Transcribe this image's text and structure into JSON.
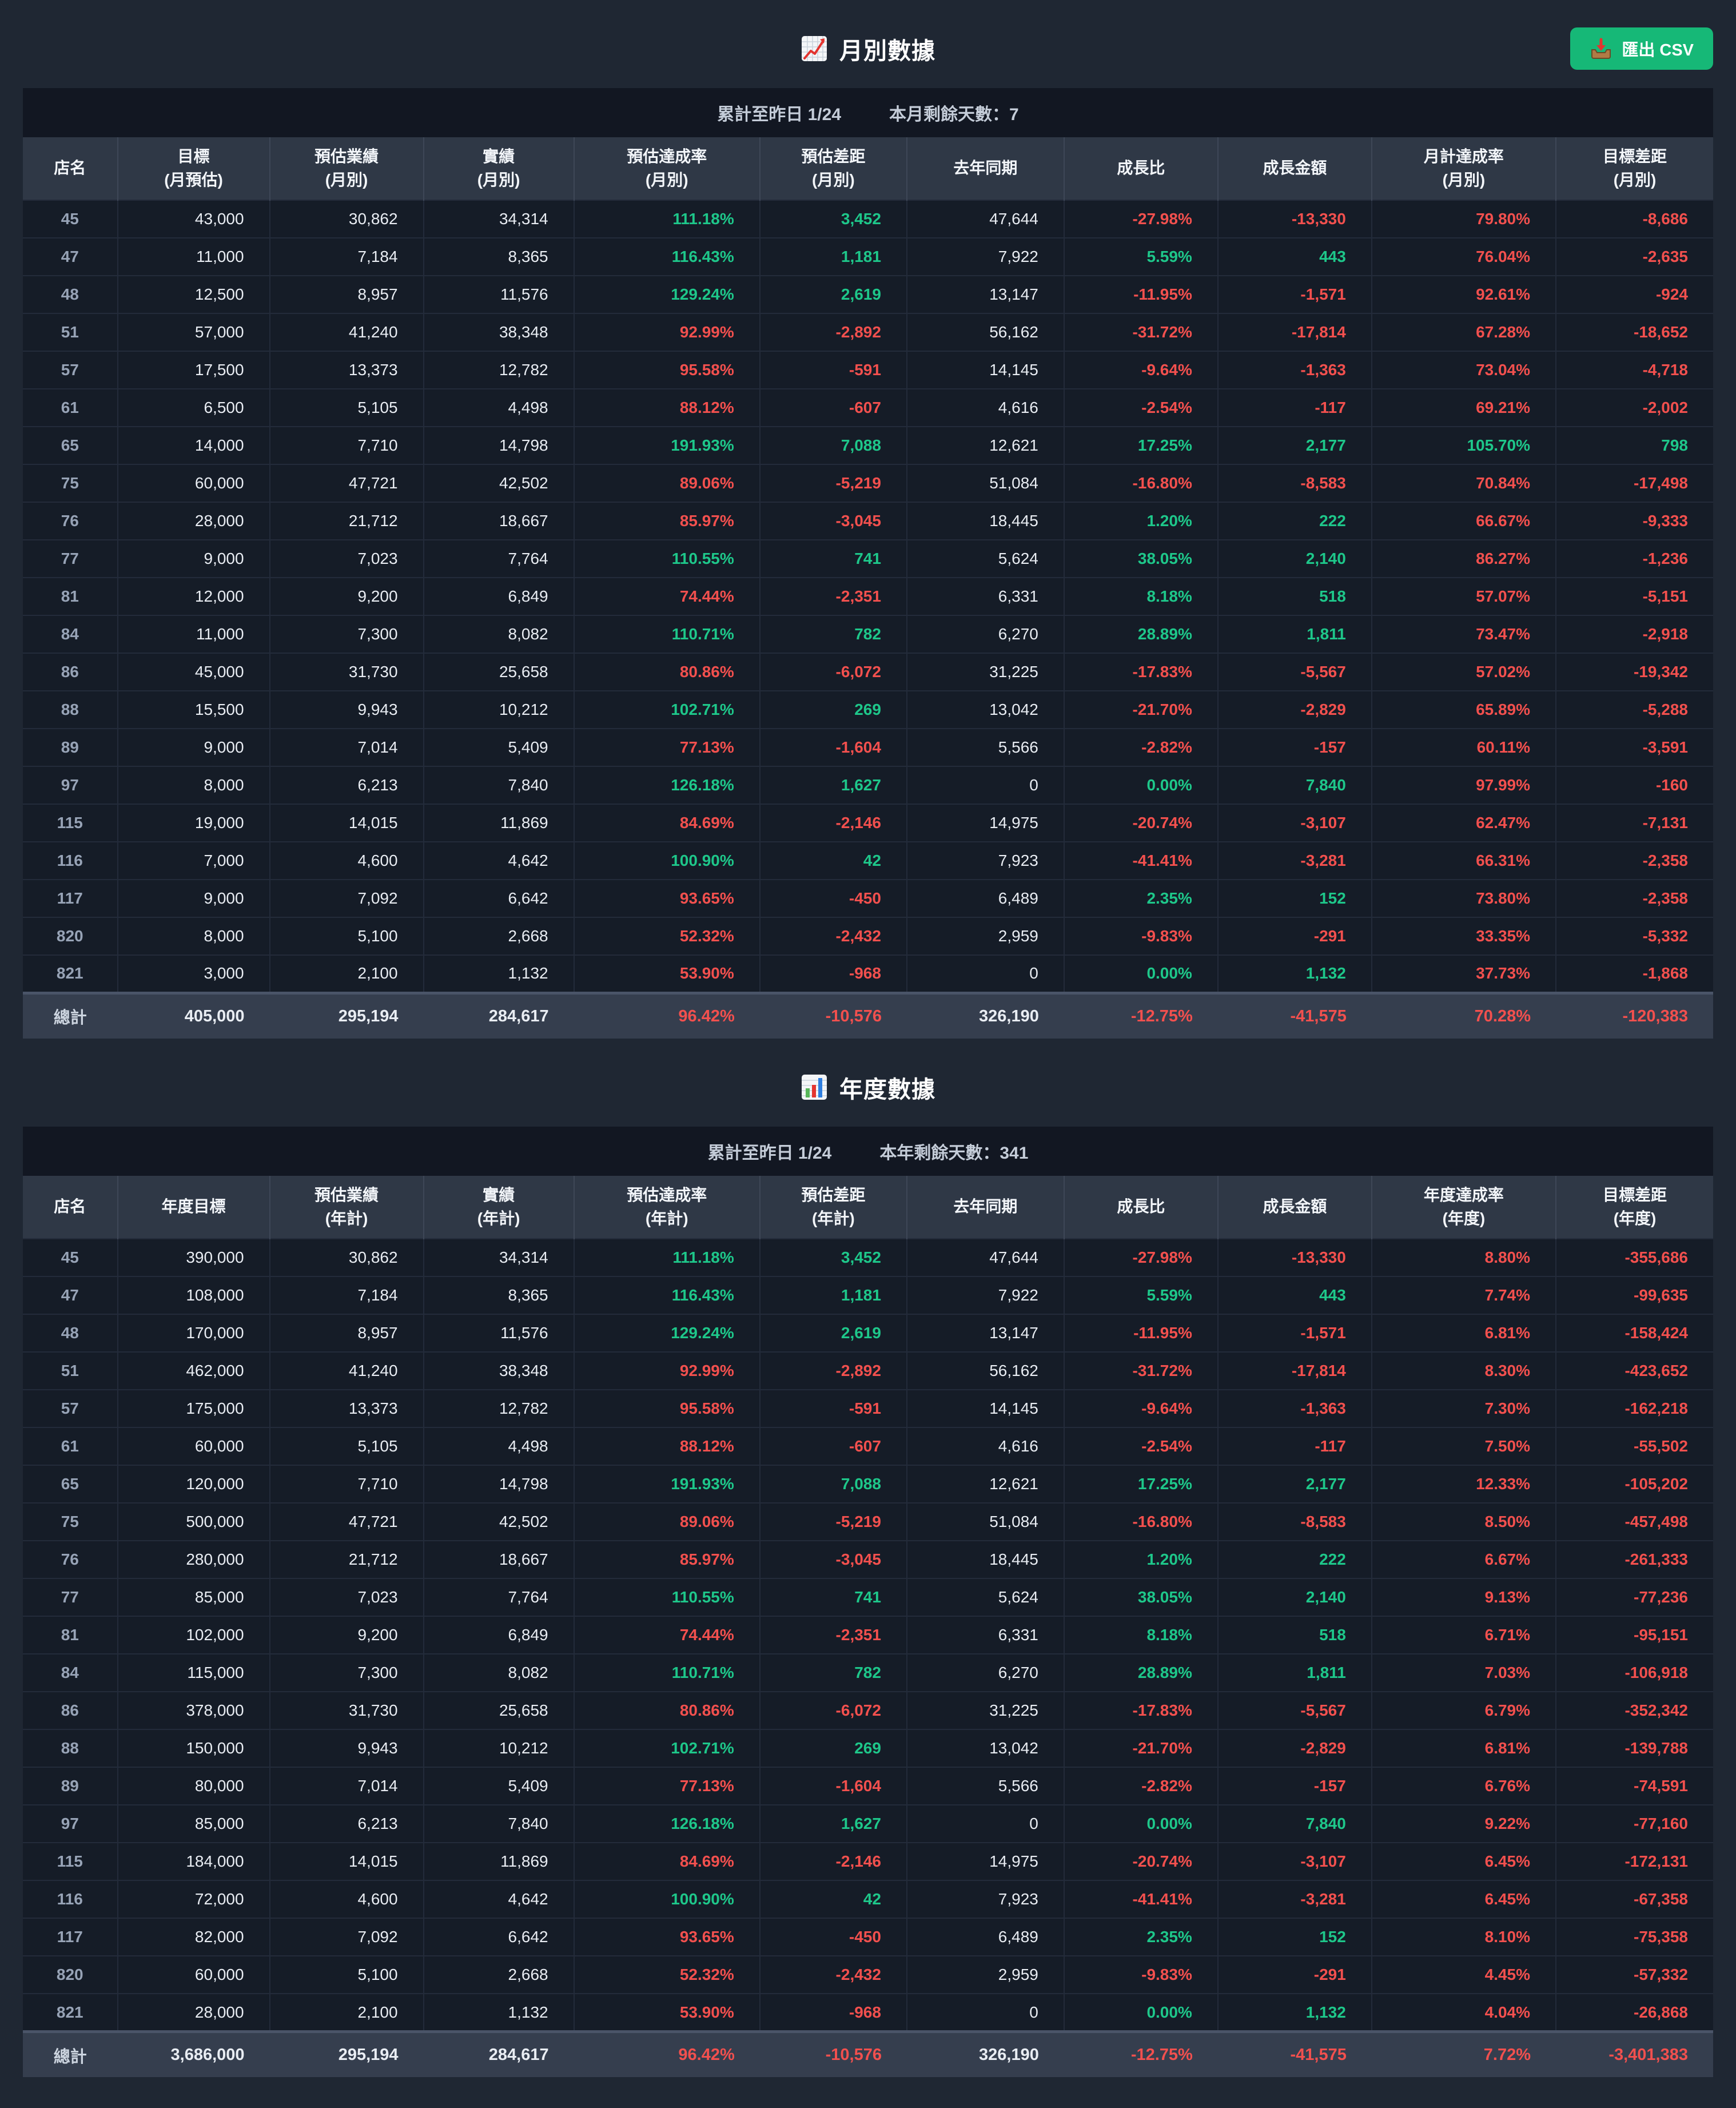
{
  "colors": {
    "positive": "#1ec78a",
    "negative": "#f2504e",
    "neutral": "#e9edf3",
    "store": "#97a3b6",
    "button_green": "#16b877"
  },
  "export_button": {
    "icon": "inbox-tray",
    "label": "匯出 CSV"
  },
  "monthly": {
    "icon": "chart-increasing",
    "title": "月別數據",
    "subtitle_left": "累計至昨日 1/24",
    "subtitle_right": "本月剩餘天數：7",
    "columns": [
      {
        "label": "店名",
        "sub": "",
        "type": "store"
      },
      {
        "label": "目標",
        "sub": "(月預估)",
        "type": "plain"
      },
      {
        "label": "預估業績",
        "sub": "(月別)",
        "type": "plain"
      },
      {
        "label": "實績",
        "sub": "(月別)",
        "type": "plain"
      },
      {
        "label": "預估達成率",
        "sub": "(月別)",
        "type": "pct100"
      },
      {
        "label": "預估差距",
        "sub": "(月別)",
        "type": "signed"
      },
      {
        "label": "去年同期",
        "sub": "",
        "type": "plain"
      },
      {
        "label": "成長比",
        "sub": "",
        "type": "signed"
      },
      {
        "label": "成長金額",
        "sub": "",
        "type": "signed"
      },
      {
        "label": "月計達成率",
        "sub": "(月別)",
        "type": "pct100"
      },
      {
        "label": "目標差距",
        "sub": "(月別)",
        "type": "signed"
      }
    ],
    "rows": [
      [
        "45",
        "43,000",
        "30,862",
        "34,314",
        "111.18%",
        "3,452",
        "47,644",
        "-27.98%",
        "-13,330",
        "79.80%",
        "-8,686"
      ],
      [
        "47",
        "11,000",
        "7,184",
        "8,365",
        "116.43%",
        "1,181",
        "7,922",
        "5.59%",
        "443",
        "76.04%",
        "-2,635"
      ],
      [
        "48",
        "12,500",
        "8,957",
        "11,576",
        "129.24%",
        "2,619",
        "13,147",
        "-11.95%",
        "-1,571",
        "92.61%",
        "-924"
      ],
      [
        "51",
        "57,000",
        "41,240",
        "38,348",
        "92.99%",
        "-2,892",
        "56,162",
        "-31.72%",
        "-17,814",
        "67.28%",
        "-18,652"
      ],
      [
        "57",
        "17,500",
        "13,373",
        "12,782",
        "95.58%",
        "-591",
        "14,145",
        "-9.64%",
        "-1,363",
        "73.04%",
        "-4,718"
      ],
      [
        "61",
        "6,500",
        "5,105",
        "4,498",
        "88.12%",
        "-607",
        "4,616",
        "-2.54%",
        "-117",
        "69.21%",
        "-2,002"
      ],
      [
        "65",
        "14,000",
        "7,710",
        "14,798",
        "191.93%",
        "7,088",
        "12,621",
        "17.25%",
        "2,177",
        "105.70%",
        "798"
      ],
      [
        "75",
        "60,000",
        "47,721",
        "42,502",
        "89.06%",
        "-5,219",
        "51,084",
        "-16.80%",
        "-8,583",
        "70.84%",
        "-17,498"
      ],
      [
        "76",
        "28,000",
        "21,712",
        "18,667",
        "85.97%",
        "-3,045",
        "18,445",
        "1.20%",
        "222",
        "66.67%",
        "-9,333"
      ],
      [
        "77",
        "9,000",
        "7,023",
        "7,764",
        "110.55%",
        "741",
        "5,624",
        "38.05%",
        "2,140",
        "86.27%",
        "-1,236"
      ],
      [
        "81",
        "12,000",
        "9,200",
        "6,849",
        "74.44%",
        "-2,351",
        "6,331",
        "8.18%",
        "518",
        "57.07%",
        "-5,151"
      ],
      [
        "84",
        "11,000",
        "7,300",
        "8,082",
        "110.71%",
        "782",
        "6,270",
        "28.89%",
        "1,811",
        "73.47%",
        "-2,918"
      ],
      [
        "86",
        "45,000",
        "31,730",
        "25,658",
        "80.86%",
        "-6,072",
        "31,225",
        "-17.83%",
        "-5,567",
        "57.02%",
        "-19,342"
      ],
      [
        "88",
        "15,500",
        "9,943",
        "10,212",
        "102.71%",
        "269",
        "13,042",
        "-21.70%",
        "-2,829",
        "65.89%",
        "-5,288"
      ],
      [
        "89",
        "9,000",
        "7,014",
        "5,409",
        "77.13%",
        "-1,604",
        "5,566",
        "-2.82%",
        "-157",
        "60.11%",
        "-3,591"
      ],
      [
        "97",
        "8,000",
        "6,213",
        "7,840",
        "126.18%",
        "1,627",
        "0",
        "0.00%",
        "7,840",
        "97.99%",
        "-160"
      ],
      [
        "115",
        "19,000",
        "14,015",
        "11,869",
        "84.69%",
        "-2,146",
        "14,975",
        "-20.74%",
        "-3,107",
        "62.47%",
        "-7,131"
      ],
      [
        "116",
        "7,000",
        "4,600",
        "4,642",
        "100.90%",
        "42",
        "7,923",
        "-41.41%",
        "-3,281",
        "66.31%",
        "-2,358"
      ],
      [
        "117",
        "9,000",
        "7,092",
        "6,642",
        "93.65%",
        "-450",
        "6,489",
        "2.35%",
        "152",
        "73.80%",
        "-2,358"
      ],
      [
        "820",
        "8,000",
        "5,100",
        "2,668",
        "52.32%",
        "-2,432",
        "2,959",
        "-9.83%",
        "-291",
        "33.35%",
        "-5,332"
      ],
      [
        "821",
        "3,000",
        "2,100",
        "1,132",
        "53.90%",
        "-968",
        "0",
        "0.00%",
        "1,132",
        "37.73%",
        "-1,868"
      ]
    ],
    "total": [
      "總計",
      "405,000",
      "295,194",
      "284,617",
      "96.42%",
      "-10,576",
      "326,190",
      "-12.75%",
      "-41,575",
      "70.28%",
      "-120,383"
    ]
  },
  "yearly": {
    "icon": "bar-chart",
    "title": "年度數據",
    "subtitle_left": "累計至昨日 1/24",
    "subtitle_right": "本年剩餘天數：341",
    "columns": [
      {
        "label": "店名",
        "sub": "",
        "type": "store"
      },
      {
        "label": "年度目標",
        "sub": "",
        "type": "plain"
      },
      {
        "label": "預估業績",
        "sub": "(年計)",
        "type": "plain"
      },
      {
        "label": "實績",
        "sub": "(年計)",
        "type": "plain"
      },
      {
        "label": "預估達成率",
        "sub": "(年計)",
        "type": "pct100"
      },
      {
        "label": "預估差距",
        "sub": "(年計)",
        "type": "signed"
      },
      {
        "label": "去年同期",
        "sub": "",
        "type": "plain"
      },
      {
        "label": "成長比",
        "sub": "",
        "type": "signed"
      },
      {
        "label": "成長金額",
        "sub": "",
        "type": "signed"
      },
      {
        "label": "年度達成率",
        "sub": "(年度)",
        "type": "pct100"
      },
      {
        "label": "目標差距",
        "sub": "(年度)",
        "type": "signed"
      }
    ],
    "rows": [
      [
        "45",
        "390,000",
        "30,862",
        "34,314",
        "111.18%",
        "3,452",
        "47,644",
        "-27.98%",
        "-13,330",
        "8.80%",
        "-355,686"
      ],
      [
        "47",
        "108,000",
        "7,184",
        "8,365",
        "116.43%",
        "1,181",
        "7,922",
        "5.59%",
        "443",
        "7.74%",
        "-99,635"
      ],
      [
        "48",
        "170,000",
        "8,957",
        "11,576",
        "129.24%",
        "2,619",
        "13,147",
        "-11.95%",
        "-1,571",
        "6.81%",
        "-158,424"
      ],
      [
        "51",
        "462,000",
        "41,240",
        "38,348",
        "92.99%",
        "-2,892",
        "56,162",
        "-31.72%",
        "-17,814",
        "8.30%",
        "-423,652"
      ],
      [
        "57",
        "175,000",
        "13,373",
        "12,782",
        "95.58%",
        "-591",
        "14,145",
        "-9.64%",
        "-1,363",
        "7.30%",
        "-162,218"
      ],
      [
        "61",
        "60,000",
        "5,105",
        "4,498",
        "88.12%",
        "-607",
        "4,616",
        "-2.54%",
        "-117",
        "7.50%",
        "-55,502"
      ],
      [
        "65",
        "120,000",
        "7,710",
        "14,798",
        "191.93%",
        "7,088",
        "12,621",
        "17.25%",
        "2,177",
        "12.33%",
        "-105,202"
      ],
      [
        "75",
        "500,000",
        "47,721",
        "42,502",
        "89.06%",
        "-5,219",
        "51,084",
        "-16.80%",
        "-8,583",
        "8.50%",
        "-457,498"
      ],
      [
        "76",
        "280,000",
        "21,712",
        "18,667",
        "85.97%",
        "-3,045",
        "18,445",
        "1.20%",
        "222",
        "6.67%",
        "-261,333"
      ],
      [
        "77",
        "85,000",
        "7,023",
        "7,764",
        "110.55%",
        "741",
        "5,624",
        "38.05%",
        "2,140",
        "9.13%",
        "-77,236"
      ],
      [
        "81",
        "102,000",
        "9,200",
        "6,849",
        "74.44%",
        "-2,351",
        "6,331",
        "8.18%",
        "518",
        "6.71%",
        "-95,151"
      ],
      [
        "84",
        "115,000",
        "7,300",
        "8,082",
        "110.71%",
        "782",
        "6,270",
        "28.89%",
        "1,811",
        "7.03%",
        "-106,918"
      ],
      [
        "86",
        "378,000",
        "31,730",
        "25,658",
        "80.86%",
        "-6,072",
        "31,225",
        "-17.83%",
        "-5,567",
        "6.79%",
        "-352,342"
      ],
      [
        "88",
        "150,000",
        "9,943",
        "10,212",
        "102.71%",
        "269",
        "13,042",
        "-21.70%",
        "-2,829",
        "6.81%",
        "-139,788"
      ],
      [
        "89",
        "80,000",
        "7,014",
        "5,409",
        "77.13%",
        "-1,604",
        "5,566",
        "-2.82%",
        "-157",
        "6.76%",
        "-74,591"
      ],
      [
        "97",
        "85,000",
        "6,213",
        "7,840",
        "126.18%",
        "1,627",
        "0",
        "0.00%",
        "7,840",
        "9.22%",
        "-77,160"
      ],
      [
        "115",
        "184,000",
        "14,015",
        "11,869",
        "84.69%",
        "-2,146",
        "14,975",
        "-20.74%",
        "-3,107",
        "6.45%",
        "-172,131"
      ],
      [
        "116",
        "72,000",
        "4,600",
        "4,642",
        "100.90%",
        "42",
        "7,923",
        "-41.41%",
        "-3,281",
        "6.45%",
        "-67,358"
      ],
      [
        "117",
        "82,000",
        "7,092",
        "6,642",
        "93.65%",
        "-450",
        "6,489",
        "2.35%",
        "152",
        "8.10%",
        "-75,358"
      ],
      [
        "820",
        "60,000",
        "5,100",
        "2,668",
        "52.32%",
        "-2,432",
        "2,959",
        "-9.83%",
        "-291",
        "4.45%",
        "-57,332"
      ],
      [
        "821",
        "28,000",
        "2,100",
        "1,132",
        "53.90%",
        "-968",
        "0",
        "0.00%",
        "1,132",
        "4.04%",
        "-26,868"
      ]
    ],
    "total": [
      "總計",
      "3,686,000",
      "295,194",
      "284,617",
      "96.42%",
      "-10,576",
      "326,190",
      "-12.75%",
      "-41,575",
      "7.72%",
      "-3,401,383"
    ]
  }
}
